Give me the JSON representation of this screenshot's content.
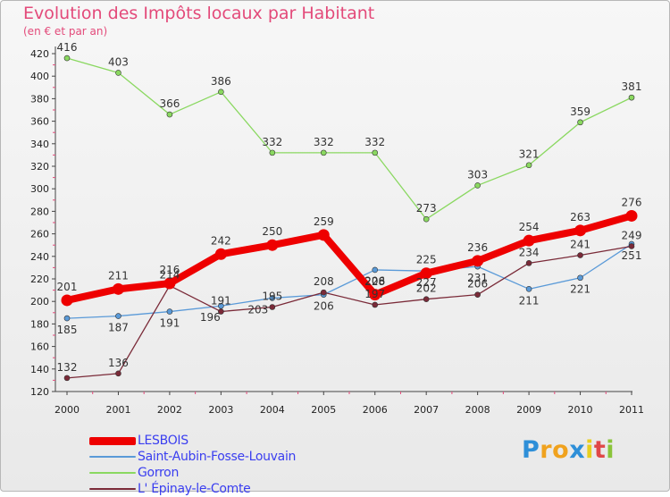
{
  "title": "Evolution des Impôts locaux par Habitant",
  "subtitle": "(en € et par an)",
  "logo": {
    "letters": [
      {
        "char": "P",
        "color": "#2e8fd8"
      },
      {
        "char": "r",
        "color": "#f0a21e"
      },
      {
        "char": "o",
        "color": "#f0a21e"
      },
      {
        "char": "x",
        "color": "#2e8fd8"
      },
      {
        "char": "i",
        "color": "#e8cf1e"
      },
      {
        "char": "t",
        "color": "#e04848"
      },
      {
        "char": "i",
        "color": "#8ac43a"
      }
    ]
  },
  "chart_data": {
    "type": "line",
    "title": "Evolution des Impôts locaux par Habitant",
    "subtitle": "(en € et par an)",
    "categories": [
      "2000",
      "2001",
      "2002",
      "2003",
      "2004",
      "2005",
      "2006",
      "2007",
      "2008",
      "2009",
      "2010",
      "2011"
    ],
    "ylim": [
      120,
      420
    ],
    "yticks": [
      120,
      140,
      160,
      180,
      200,
      220,
      240,
      260,
      280,
      300,
      320,
      340,
      360,
      380,
      400,
      420
    ],
    "grid": false,
    "legend_position": "bottom-left",
    "series": [
      {
        "name": "LESBOIS",
        "color": "#ee0000",
        "values": [
          201,
          211,
          216,
          242,
          250,
          259,
          206,
          225,
          236,
          254,
          263,
          276
        ]
      },
      {
        "name": "Saint-Aubin-Fosse-Louvain",
        "color": "#5a9ad8",
        "values": [
          185,
          187,
          191,
          196,
          203,
          206,
          228,
          227,
          231,
          211,
          221,
          251
        ]
      },
      {
        "name": "Gorron",
        "color": "#8ad860",
        "values": [
          416,
          403,
          366,
          386,
          332,
          332,
          332,
          273,
          303,
          321,
          359,
          381
        ]
      },
      {
        "name": "L' Épinay-le-Comte",
        "color": "#7a2a38",
        "values": [
          132,
          136,
          214,
          191,
          195,
          208,
          197,
          202,
          206,
          234,
          241,
          249
        ]
      }
    ]
  }
}
